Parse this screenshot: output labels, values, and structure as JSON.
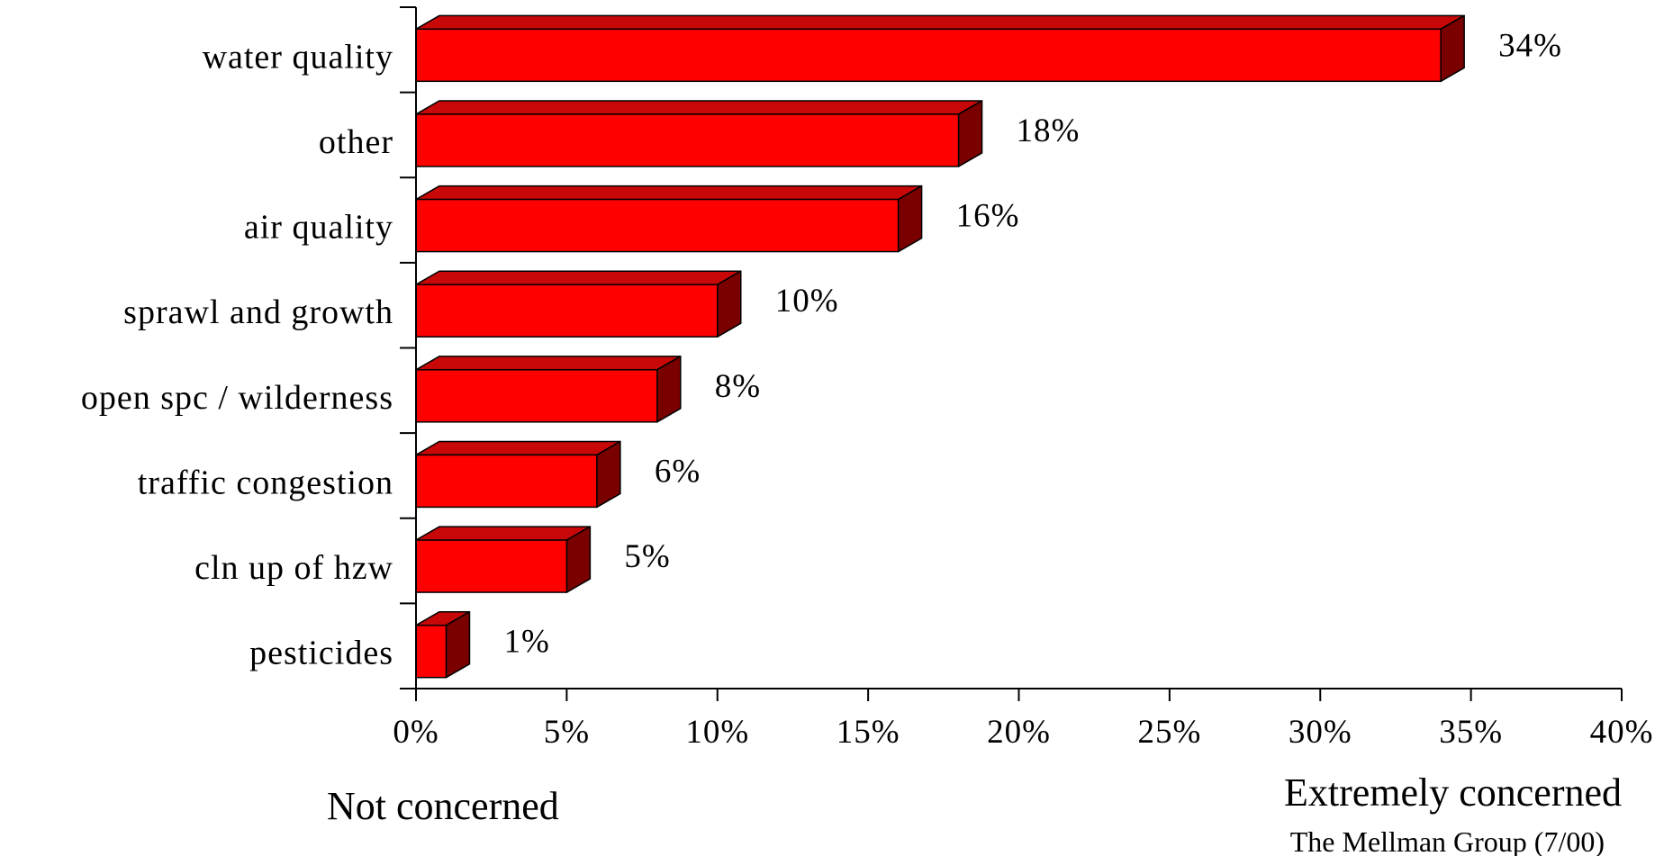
{
  "chart_data": {
    "type": "bar",
    "orientation": "horizontal",
    "style": "3d",
    "categories": [
      "water quality",
      "other",
      "air quality",
      "sprawl and growth",
      "open spc / wilderness",
      "traffic congestion",
      "cln up of hzw",
      "pesticides"
    ],
    "values": [
      34,
      18,
      16,
      10,
      8,
      6,
      5,
      1
    ],
    "value_labels": [
      "34%",
      "18%",
      "16%",
      "10%",
      "8%",
      "6%",
      "5%",
      "1%"
    ],
    "xlim": [
      0,
      40
    ],
    "ticks": [
      0,
      5,
      10,
      15,
      20,
      25,
      30,
      35,
      40
    ],
    "tick_labels": [
      "0%",
      "5%",
      "10%",
      "15%",
      "20%",
      "25%",
      "30%",
      "35%",
      "40%"
    ],
    "axis_end_labels": {
      "left": "Not concerned",
      "right": "Extremely concerned"
    },
    "source": "The Mellman Group (7/00)",
    "grid": false,
    "legend": "none",
    "colors": {
      "bar_front": "#ff0000",
      "bar_top": "#c80808",
      "bar_side": "#7a0000",
      "outline": "#000000"
    }
  }
}
